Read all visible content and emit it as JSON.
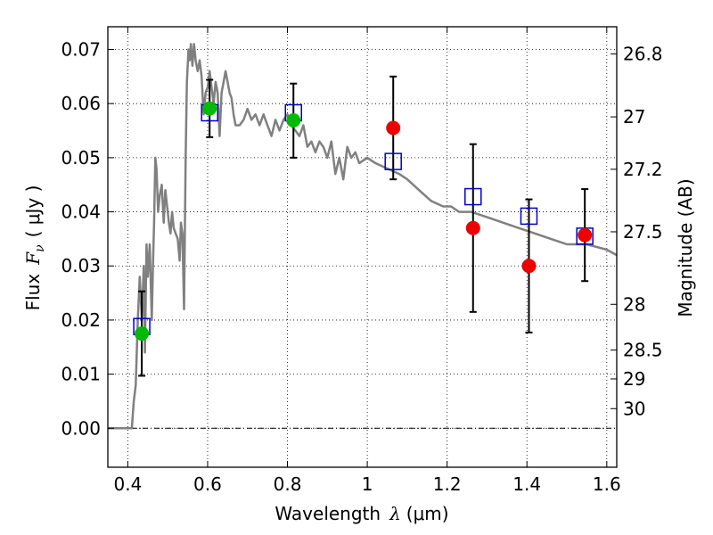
{
  "chart_data": {
    "type": "scatter",
    "xlabel_prefix": "Wavelength",
    "xlabel_symbol": "λ",
    "xlabel_unit": "(μm)",
    "ylabel_prefix": "Flux",
    "ylabel_symbol": "F",
    "ylabel_subscript": "ν",
    "ylabel_unit": "( μJy )",
    "y2label": "Magnitude (AB)",
    "xlim": [
      0.35,
      1.625
    ],
    "ylim": [
      -0.0072,
      0.0742
    ],
    "grid": true,
    "x_ticks": [
      0.4,
      0.6,
      0.8,
      1.0,
      1.2,
      1.4,
      1.6
    ],
    "x_tick_labels": [
      "0.4",
      "0.6",
      "0.8",
      "1",
      "1.2",
      "1.4",
      "1.6"
    ],
    "y_ticks": [
      0.0,
      0.01,
      0.02,
      0.03,
      0.04,
      0.05,
      0.06,
      0.07
    ],
    "y_tick_labels": [
      "0.00",
      "0.01",
      "0.02",
      "0.03",
      "0.04",
      "0.05",
      "0.06",
      "0.07"
    ],
    "mag_ticks": [
      26.8,
      27.0,
      27.2,
      27.5,
      28.0,
      28.5,
      29.0,
      30.0
    ],
    "mag_tick_labels": [
      "26.8",
      "27",
      "27.2",
      "27.5",
      "28",
      "28.5",
      "29",
      "30"
    ],
    "zero_line": true,
    "colors": {
      "model": "#808080",
      "squares": "#0000cc",
      "green": "#00bb00",
      "red": "#ee0000",
      "errorbar": "#000000"
    },
    "model_spectrum": {
      "x": [
        0.35,
        0.41,
        0.415,
        0.42,
        0.425,
        0.43,
        0.435,
        0.44,
        0.443,
        0.447,
        0.45,
        0.455,
        0.46,
        0.463,
        0.466,
        0.469,
        0.472,
        0.476,
        0.48,
        0.485,
        0.49,
        0.494,
        0.497,
        0.5,
        0.503,
        0.507,
        0.511,
        0.515,
        0.52,
        0.525,
        0.53,
        0.533,
        0.537,
        0.541,
        0.545,
        0.548,
        0.552,
        0.555,
        0.558,
        0.562,
        0.566,
        0.57,
        0.575,
        0.58,
        0.585,
        0.59,
        0.595,
        0.6,
        0.605,
        0.61,
        0.615,
        0.62,
        0.625,
        0.63,
        0.635,
        0.64,
        0.645,
        0.65,
        0.655,
        0.66,
        0.665,
        0.67,
        0.68,
        0.69,
        0.7,
        0.71,
        0.72,
        0.73,
        0.74,
        0.75,
        0.76,
        0.77,
        0.78,
        0.79,
        0.8,
        0.81,
        0.82,
        0.83,
        0.84,
        0.85,
        0.86,
        0.87,
        0.88,
        0.89,
        0.9,
        0.91,
        0.92,
        0.93,
        0.94,
        0.95,
        0.96,
        0.97,
        0.98,
        1.0,
        1.02,
        1.05,
        1.08,
        1.1,
        1.13,
        1.16,
        1.19,
        1.21,
        1.23,
        1.26,
        1.3,
        1.34,
        1.38,
        1.42,
        1.46,
        1.5,
        1.55,
        1.6,
        1.625
      ],
      "y": [
        0.0,
        0.0,
        0.005,
        0.008,
        0.02,
        0.028,
        0.02,
        0.03,
        0.014,
        0.034,
        0.028,
        0.034,
        0.02,
        0.03,
        0.038,
        0.05,
        0.048,
        0.04,
        0.043,
        0.045,
        0.038,
        0.044,
        0.042,
        0.04,
        0.038,
        0.036,
        0.04,
        0.037,
        0.036,
        0.035,
        0.031,
        0.038,
        0.036,
        0.022,
        0.05,
        0.064,
        0.07,
        0.068,
        0.071,
        0.067,
        0.071,
        0.068,
        0.066,
        0.068,
        0.065,
        0.058,
        0.062,
        0.063,
        0.066,
        0.063,
        0.06,
        0.064,
        0.062,
        0.054,
        0.062,
        0.064,
        0.066,
        0.064,
        0.062,
        0.061,
        0.058,
        0.056,
        0.056,
        0.057,
        0.059,
        0.057,
        0.058,
        0.056,
        0.058,
        0.056,
        0.054,
        0.057,
        0.055,
        0.057,
        0.058,
        0.056,
        0.055,
        0.054,
        0.056,
        0.052,
        0.053,
        0.051,
        0.053,
        0.052,
        0.05,
        0.053,
        0.047,
        0.05,
        0.046,
        0.052,
        0.05,
        0.051,
        0.049,
        0.05,
        0.049,
        0.048,
        0.047,
        0.046,
        0.044,
        0.042,
        0.041,
        0.041,
        0.04,
        0.04,
        0.039,
        0.038,
        0.037,
        0.036,
        0.035,
        0.034,
        0.034,
        0.033,
        0.032
      ]
    },
    "squares": {
      "x": [
        0.435,
        0.605,
        0.815,
        1.065,
        1.265,
        1.405,
        1.545
      ],
      "y": [
        0.0188,
        0.0583,
        0.0583,
        0.0493,
        0.0428,
        0.0392,
        0.0355
      ]
    },
    "green_points": {
      "x": [
        0.435,
        0.605,
        0.815
      ],
      "y": [
        0.0175,
        0.0591,
        0.0569
      ],
      "yerr_low": [
        0.0078,
        0.0053,
        0.0069
      ],
      "yerr_high": [
        0.0078,
        0.0053,
        0.0068
      ]
    },
    "red_points": {
      "x": [
        1.065,
        1.265,
        1.405,
        1.545
      ],
      "y": [
        0.0555,
        0.037,
        0.03,
        0.0357
      ],
      "yerr_low": [
        0.0095,
        0.0155,
        0.0123,
        0.0085
      ],
      "yerr_high": [
        0.0095,
        0.0155,
        0.0123,
        0.0085
      ]
    }
  }
}
